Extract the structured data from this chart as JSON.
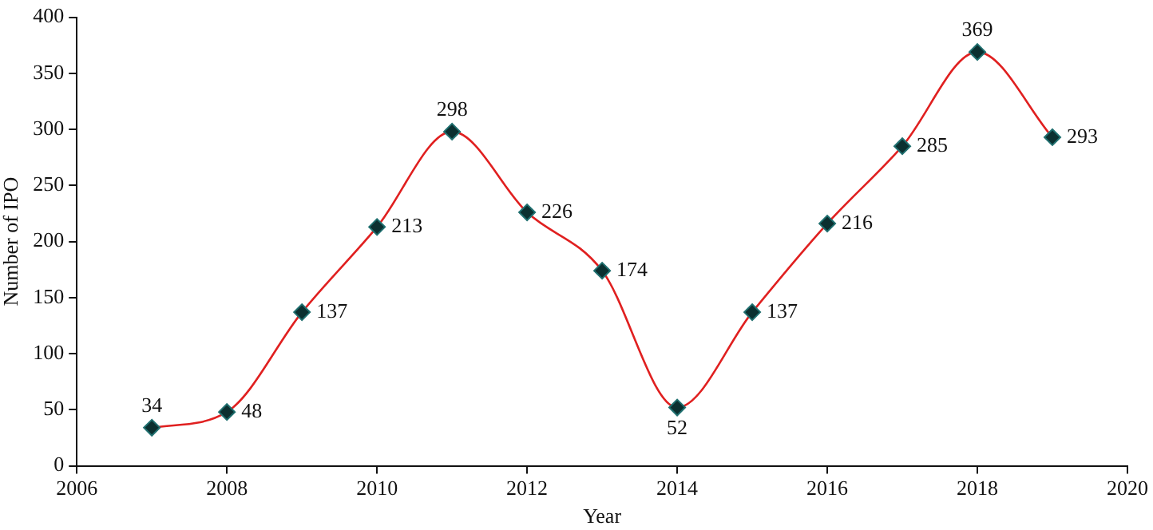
{
  "chart_data": {
    "type": "line",
    "xlabel": "Year",
    "ylabel": "Number of IPO",
    "x": [
      2007,
      2008,
      2009,
      2010,
      2011,
      2012,
      2013,
      2014,
      2015,
      2016,
      2017,
      2018,
      2019
    ],
    "series": [
      {
        "color": "#e02020",
        "colors": [
          "#0b3030",
          "#0b3030",
          "#0b3030",
          "#0b3030",
          "#0b3030",
          "#0b3030",
          "#0b3030",
          "#0b3030",
          "#0b3030",
          "#0b3030",
          "#0b3030",
          "#0b3030",
          "#0b3030"
        ],
        "values": [
          34,
          48,
          137,
          213,
          298,
          226,
          174,
          52,
          137,
          216,
          285,
          369,
          293
        ]
      }
    ],
    "xlim": [
      2006,
      2020
    ],
    "xticks": [
      2006,
      2008,
      2010,
      2012,
      2014,
      2016,
      2018,
      2020
    ],
    "ylim": [
      0,
      400
    ],
    "yticks": [
      0,
      50,
      100,
      150,
      200,
      250,
      300,
      350,
      400
    ],
    "grid": false,
    "legend": false,
    "marker": "diamond",
    "line_style": "solid",
    "data_labels": true
  }
}
